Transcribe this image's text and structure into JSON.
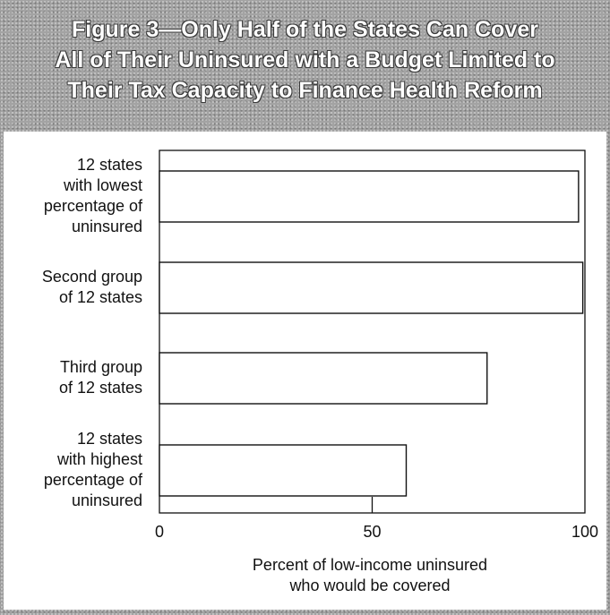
{
  "title_lines": [
    "Figure 3—Only Half of the States Can Cover",
    "All of Their Uninsured with a Budget Limited to",
    "Their Tax Capacity to Finance Health Reform"
  ],
  "chart_data": {
    "type": "bar",
    "orientation": "horizontal",
    "categories": [
      [
        "12 states",
        "with lowest",
        "percentage of",
        "uninsured"
      ],
      [
        "Second group",
        "of 12 states"
      ],
      [
        "Third group",
        "of 12 states"
      ],
      [
        "12 states",
        "with highest",
        "percentage of",
        "uninsured"
      ]
    ],
    "values": [
      98.5,
      99.5,
      77,
      58
    ],
    "xlim": [
      0,
      100
    ],
    "xticks": [
      "0",
      "50",
      "100"
    ],
    "xlabel_lines": [
      "Percent of low-income uninsured",
      "who would be covered"
    ],
    "grid": false,
    "colors": {
      "bar_fill": "#ffffff",
      "bar_stroke": "#111111"
    }
  }
}
